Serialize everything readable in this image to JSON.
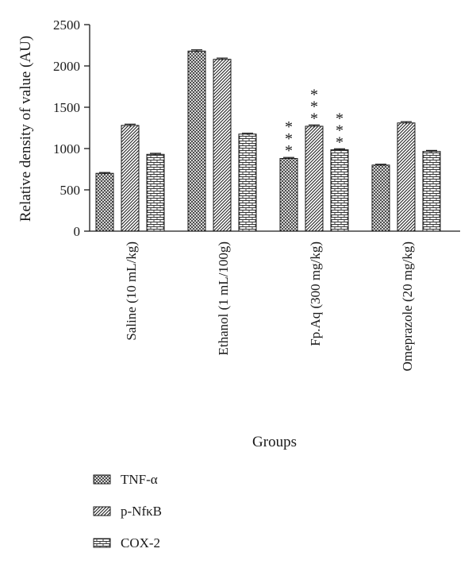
{
  "chart_data": {
    "type": "bar",
    "title": "",
    "ylabel": "Relative density of value (AU)",
    "xlabel": "Groups",
    "ylim": [
      0,
      2500
    ],
    "yticks": [
      0,
      500,
      1000,
      1500,
      2000,
      2500
    ],
    "categories": [
      "Saline (10 mL/kg)",
      "Ethanol (1 mL/100g)",
      "Fp.Aq (300 mg/kg)",
      "Omeprazole (20 mg/kg)"
    ],
    "series": [
      {
        "name": "TNF-α",
        "values": [
          700,
          2180,
          880,
          800
        ],
        "errors": [
          10,
          15,
          12,
          10
        ],
        "pattern": "crosshatch"
      },
      {
        "name": "p-NfκB",
        "values": [
          1280,
          2080,
          1270,
          1310
        ],
        "errors": [
          15,
          15,
          15,
          15
        ],
        "pattern": "diagonal"
      },
      {
        "name": "COX-2",
        "values": [
          930,
          1175,
          985,
          965
        ],
        "errors": [
          12,
          10,
          12,
          12
        ],
        "pattern": "brick"
      }
    ],
    "annotations": [
      {
        "category": "Fp.Aq (300 mg/kg)",
        "series": "TNF-α",
        "text": "***"
      },
      {
        "category": "Fp.Aq (300 mg/kg)",
        "series": "p-NfκB",
        "text": "***"
      },
      {
        "category": "Fp.Aq (300 mg/kg)",
        "series": "COX-2",
        "text": "***"
      }
    ],
    "legend_position": "bottom-left",
    "grid": false
  }
}
